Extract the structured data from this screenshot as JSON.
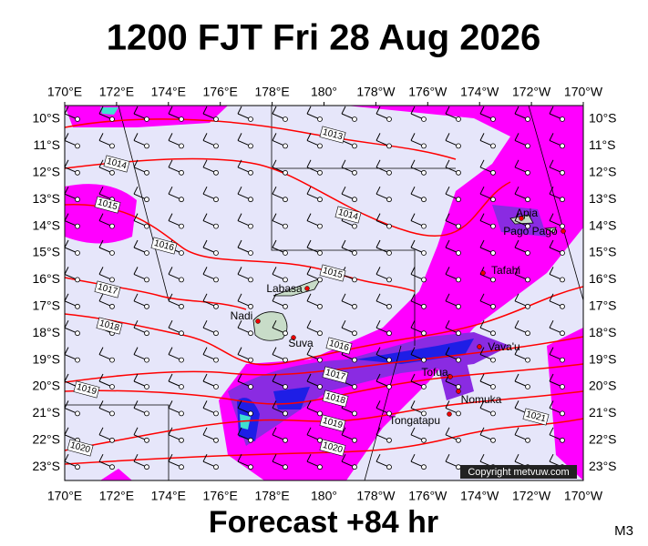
{
  "title": "1200 FJT Fri 28 Aug 2026",
  "footer": "Forecast +84 hr",
  "model": "M3",
  "copyright": "Copyright metvuw.com",
  "lon_labels": [
    "170°E",
    "172°E",
    "174°E",
    "176°E",
    "178°E",
    "180°",
    "178°W",
    "176°W",
    "174°W",
    "172°W",
    "170°W"
  ],
  "lat_labels": [
    "10°S",
    "11°S",
    "12°S",
    "13°S",
    "14°S",
    "15°S",
    "16°S",
    "17°S",
    "18°S",
    "19°S",
    "20°S",
    "21°S",
    "22°S",
    "23°S"
  ],
  "places": [
    "Apia",
    "Pago Pago",
    "Tafahi",
    "Labasa",
    "Nadi",
    "Suva",
    "Vava'u",
    "Tofua",
    "Nomuka",
    "Tongatapu"
  ],
  "isobar_labels": [
    "1013",
    "1014",
    "1015",
    "1016",
    "1014",
    "1015",
    "1017",
    "1018",
    "1016",
    "1017",
    "1018",
    "1019",
    "1019",
    "1020",
    "1020",
    "1021"
  ]
}
